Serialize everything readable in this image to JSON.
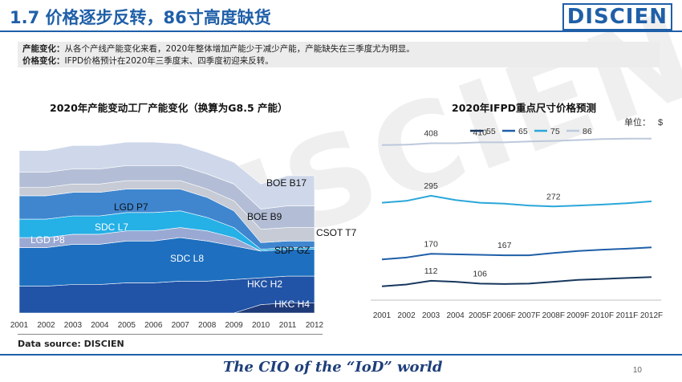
{
  "header": {
    "title": "1.7 价格逐步反转，86寸高度缺货",
    "logo": "DISCIEN"
  },
  "note": {
    "line1_label": "产能变化：",
    "line1_text": "从各个产线产能变化来看，2020年整体增加产能少于减少产能，产能缺失在三季度尤为明显。",
    "line2_label": "价格变化：",
    "line2_text": "IFPD价格预计在2020年三季度末、四季度初迎来反转。"
  },
  "chart_data": [
    {
      "type": "area",
      "title": "2020年产能变动工厂产能变化（换算为G8.5 产能）",
      "x": [
        "2001",
        "2002",
        "2003",
        "2004",
        "2005",
        "2006",
        "2007",
        "2008",
        "2009",
        "2010",
        "2011",
        "2012"
      ],
      "area_labels": [
        "BOE B17",
        "LGD P7",
        "SDC L7",
        "LGD P8",
        "BOE B9",
        "SDP GZ",
        "CSOT T7",
        "SDC L8",
        "HKC H2",
        "HKC H4"
      ],
      "colors": [
        "#1e3a78",
        "#2153a6",
        "#1e6fbf",
        "#2a8fd6",
        "#25b0e6",
        "#8aa7d6",
        "#b9c7e3",
        "#9cb0d9",
        "#c9d2e8",
        "#7d8fb8"
      ],
      "bands": [
        {
          "name": "HKC H4",
          "values": [
            0,
            0,
            0,
            0,
            0,
            0,
            0,
            0,
            0,
            0.5,
            0.6,
            0.6
          ]
        },
        {
          "name": "HKC H2",
          "values": [
            1.6,
            1.6,
            1.7,
            1.7,
            1.8,
            1.8,
            1.9,
            1.9,
            2.0,
            1.6,
            1.6,
            1.6
          ]
        },
        {
          "name": "SDC L8",
          "values": [
            2.3,
            2.3,
            2.4,
            2.4,
            2.5,
            2.5,
            2.6,
            2.4,
            2.0,
            1.6,
            1.6,
            1.6
          ]
        },
        {
          "name": "LGD P8",
          "values": [
            0.6,
            0.6,
            0.6,
            0.6,
            0.6,
            0.6,
            0.6,
            0.6,
            0.5,
            0.0,
            0.0,
            0.0
          ]
        },
        {
          "name": "SDC L7",
          "values": [
            1.1,
            1.1,
            1.1,
            1.1,
            1.1,
            1.1,
            1.0,
            0.8,
            0.6,
            0.1,
            0.1,
            0.1
          ]
        },
        {
          "name": "LGD P7",
          "values": [
            1.4,
            1.4,
            1.4,
            1.4,
            1.4,
            1.4,
            1.3,
            1.2,
            1.0,
            0.4,
            0.4,
            0.4
          ]
        },
        {
          "name": "SDP GZ",
          "values": [
            0.5,
            0.5,
            0.5,
            0.5,
            0.5,
            0.5,
            0.5,
            0.5,
            0.6,
            0.8,
            0.8,
            0.8
          ]
        },
        {
          "name": "BOE B9",
          "values": [
            0.9,
            0.9,
            0.9,
            0.9,
            0.9,
            0.9,
            0.9,
            0.9,
            1.0,
            1.2,
            1.3,
            1.3
          ]
        },
        {
          "name": "BOE B17",
          "values": [
            1.3,
            1.3,
            1.4,
            1.4,
            1.4,
            1.4,
            1.3,
            1.3,
            1.3,
            1.5,
            1.8,
            1.8
          ]
        }
      ]
    },
    {
      "type": "line",
      "title": "2020年IFPD重点尺寸价格预测",
      "unit_label": "单位：",
      "unit": "$",
      "x": [
        "2001",
        "2002",
        "2003",
        "2004",
        "2005F",
        "2006F",
        "2007F",
        "2008F",
        "2009F",
        "2010F",
        "2011F",
        "2012F"
      ],
      "series": [
        {
          "name": "55",
          "color": "#17375e",
          "values": [
            100,
            104,
            112,
            110,
            106,
            105,
            106,
            110,
            114,
            116,
            118,
            120
          ]
        },
        {
          "name": "65",
          "color": "#1f5fa8",
          "values": [
            158,
            162,
            170,
            169,
            168,
            167,
            167,
            172,
            176,
            179,
            181,
            184
          ]
        },
        {
          "name": "75",
          "color": "#2aa7d9",
          "values": [
            280,
            284,
            295,
            286,
            280,
            278,
            274,
            272,
            274,
            276,
            279,
            283
          ]
        },
        {
          "name": "86",
          "color": "#bcc8dc",
          "values": [
            404,
            405,
            408,
            408,
            410,
            410,
            412,
            413,
            415,
            417,
            418,
            418
          ]
        }
      ],
      "data_labels": [
        {
          "series": "86",
          "index": 2,
          "text": "408"
        },
        {
          "series": "86",
          "index": 4,
          "text": "410"
        },
        {
          "series": "75",
          "index": 2,
          "text": "295"
        },
        {
          "series": "75",
          "index": 7,
          "text": "272"
        },
        {
          "series": "65",
          "index": 2,
          "text": "170"
        },
        {
          "series": "65",
          "index": 5,
          "text": "167"
        },
        {
          "series": "55",
          "index": 2,
          "text": "112"
        },
        {
          "series": "55",
          "index": 4,
          "text": "106"
        }
      ],
      "ylim": [
        60,
        440
      ]
    }
  ],
  "footer": {
    "source": "Data source: DISCIEN",
    "slogan": "The CIO of the “IoD” world",
    "page": "10"
  },
  "watermark": "DISCIEN"
}
